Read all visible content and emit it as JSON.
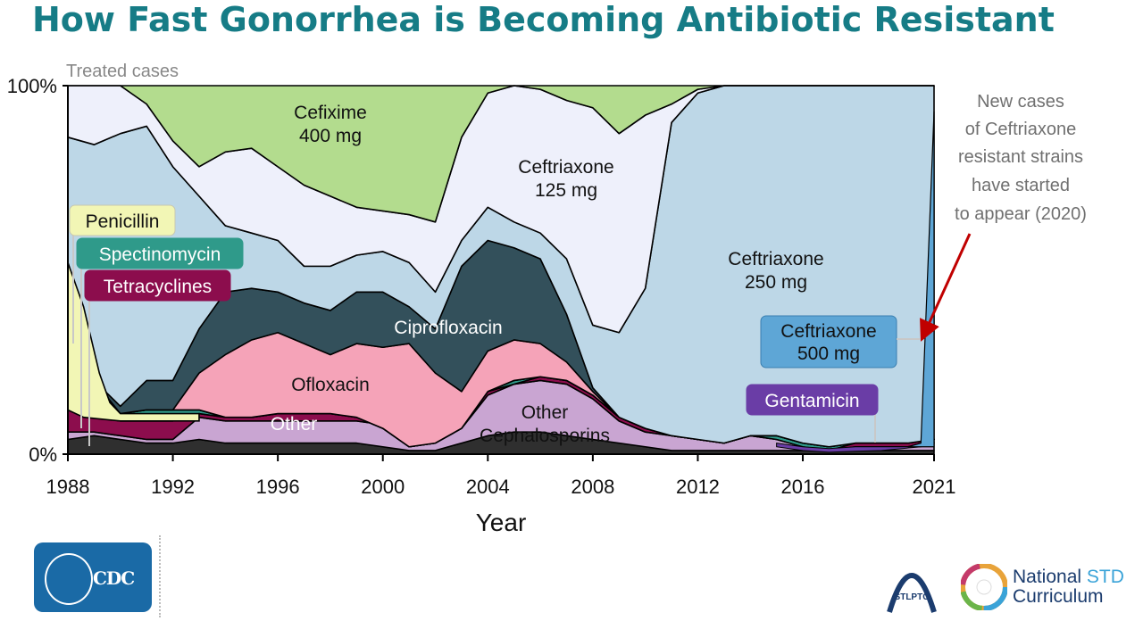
{
  "title": "How Fast Gonorrhea is Becoming Antibiotic Resistant",
  "chart_data": {
    "type": "area",
    "y_axis_title": "Treated cases",
    "y_ticks": [
      "100%",
      "0%"
    ],
    "x_ticks": [
      "1988",
      "1992",
      "1996",
      "2000",
      "2004",
      "2008",
      "2012",
      "2016",
      "2021"
    ],
    "xlabel": "Year",
    "ylim": [
      0,
      100
    ],
    "x": [
      1988,
      1989,
      1990,
      1991,
      1992,
      1993,
      1994,
      1995,
      1996,
      1997,
      1998,
      1999,
      2000,
      2001,
      2002,
      2003,
      2004,
      2005,
      2006,
      2007,
      2008,
      2009,
      2010,
      2011,
      2012,
      2013,
      2014,
      2015,
      2016,
      2017,
      2018,
      2019,
      2020,
      2021
    ],
    "boundaries_cumulative_percent": {
      "penicillin_tetracyclines_top": [
        4,
        5,
        4,
        3,
        3,
        4,
        3,
        3,
        3,
        3,
        3,
        3,
        2,
        1,
        1,
        3,
        5,
        6,
        6,
        5,
        4,
        3,
        2,
        1,
        1,
        1,
        1,
        1,
        1,
        1,
        1,
        1,
        1,
        1
      ],
      "tetracyclines_top": [
        6,
        6,
        5,
        4,
        4,
        10,
        9,
        9,
        9,
        9,
        9,
        9,
        8,
        2,
        3,
        7,
        16,
        19,
        20,
        19,
        15,
        9,
        6,
        5,
        4,
        3,
        5,
        4,
        2,
        1,
        2,
        2,
        2,
        3
      ],
      "spectinomycin_top": [
        12,
        10,
        9,
        9,
        9,
        11,
        10,
        10,
        11,
        11,
        11,
        10,
        7,
        2,
        3,
        7,
        17,
        19,
        21,
        20,
        16,
        10,
        7,
        5,
        4,
        3,
        5,
        4,
        2,
        1,
        3,
        3,
        3,
        4
      ],
      "penicillin_top": [
        52,
        20,
        11,
        12,
        12,
        12,
        10,
        10,
        11,
        11,
        11,
        10,
        7,
        2,
        3,
        7,
        17,
        20,
        21,
        20,
        16,
        10,
        7,
        5,
        4,
        3,
        5,
        5,
        3,
        2,
        3,
        3,
        3,
        4
      ],
      "other_top": [
        52,
        20,
        11,
        12,
        12,
        12,
        10,
        10,
        11,
        11,
        11,
        10,
        7,
        2,
        3,
        7,
        17,
        20,
        21,
        20,
        16,
        10,
        7,
        5,
        4,
        3,
        5,
        5,
        3,
        2,
        3,
        3,
        3,
        4
      ],
      "ofloxacin_top": [
        52,
        20,
        11,
        12,
        12,
        22,
        27,
        31,
        33,
        30,
        27,
        30,
        29,
        30,
        22,
        17,
        28,
        31,
        30,
        25,
        17,
        10,
        7,
        5,
        4,
        3,
        5,
        5,
        3,
        2,
        3,
        3,
        3,
        4
      ],
      "ciprofloxacin_top": [
        52,
        20,
        13,
        20,
        20,
        34,
        44,
        45,
        44,
        41,
        39,
        44,
        44,
        40,
        34,
        51,
        58,
        56,
        53,
        38,
        18,
        10,
        7,
        5,
        4,
        3,
        5,
        5,
        3,
        2,
        3,
        3,
        3,
        4
      ],
      "ceftriaxone250_top": [
        86,
        84,
        87,
        89,
        78,
        70,
        62,
        60,
        58,
        51,
        51,
        54,
        55,
        52,
        44,
        58,
        67,
        63,
        60,
        53,
        35,
        33,
        45,
        90,
        98,
        100,
        100,
        100,
        100,
        100,
        100,
        100,
        100,
        100
      ],
      "ceftriaxone125_top": [
        100,
        100,
        100,
        95,
        85,
        78,
        82,
        83,
        78,
        73,
        70,
        67,
        66,
        65,
        63,
        86,
        98,
        100,
        99,
        96,
        94,
        87,
        92,
        95,
        99,
        100,
        100,
        100,
        100,
        100,
        100,
        100,
        100,
        100
      ],
      "cefixime_top": [
        100,
        100,
        100,
        100,
        100,
        100,
        100,
        100,
        100,
        100,
        100,
        100,
        100,
        100,
        100,
        100,
        100,
        100,
        100,
        100,
        100,
        100,
        100,
        100,
        100,
        100,
        100,
        100,
        100,
        100,
        100,
        100,
        100,
        100
      ],
      "ceftriaxone500_bottom": [
        100,
        100,
        100,
        100,
        100,
        100,
        100,
        100,
        100,
        100,
        100,
        100,
        100,
        100,
        100,
        100,
        100,
        100,
        100,
        100,
        100,
        100,
        100,
        100,
        100,
        100,
        100,
        100,
        100,
        100,
        100,
        100,
        4,
        4
      ]
    },
    "series": [
      {
        "name": "Penicillin",
        "color": "#f2f6b5"
      },
      {
        "name": "Spectinomycin",
        "color": "#2f9a8a"
      },
      {
        "name": "Tetracyclines",
        "color": "#8c0d4d"
      },
      {
        "name": "Other",
        "color": "#2f2f2f"
      },
      {
        "name": "Ofloxacin",
        "color": "#f5a3b8"
      },
      {
        "name": "Ciprofloxacin",
        "color": "#33505b"
      },
      {
        "name": "Ceftriaxone 250 mg",
        "color": "#bdd7e7"
      },
      {
        "name": "Ceftriaxone 125 mg",
        "color": "#eef0fb"
      },
      {
        "name": "Cefixime 400 mg",
        "color": "#b3dc8e"
      },
      {
        "name": "Other Cephalosporins",
        "color": "#c9a5d2"
      },
      {
        "name": "Gentamicin",
        "color": "#6a3da6"
      },
      {
        "name": "Ceftriaxone 500 mg",
        "color": "#5ea6d6"
      }
    ],
    "labels": {
      "cefixime_1": "Cefixime",
      "cefixime_2": "400 mg",
      "ceftriaxone125_1": "Ceftriaxone",
      "ceftriaxone125_2": "125 mg",
      "ceftriaxone250_1": "Ceftriaxone",
      "ceftriaxone250_2": "250 mg",
      "penicillin": "Penicillin",
      "spectinomycin": "Spectinomycin",
      "tetracyclines": "Tetracyclines",
      "ciprofloxacin": "Ciprofloxacin",
      "ofloxacin": "Ofloxacin",
      "other": "Other",
      "other_cephalosporins_1": "Other",
      "other_cephalosporins_2": "Cephalosporins",
      "ceftriaxone500_1": "Ceftriaxone",
      "ceftriaxone500_2": "500 mg",
      "gentamicin": "Gentamicin"
    },
    "annotation": [
      "New cases",
      "of Ceftriaxone",
      "resistant strains",
      "have started",
      "to appear (2020)"
    ]
  },
  "logos": {
    "cdc": "CDC",
    "stlptc": "STLPTC",
    "nstd_line1_a": "National ",
    "nstd_line1_b": "STD",
    "nstd_line2": "Curriculum"
  },
  "colors": {
    "title": "#167c86",
    "annotation_arrow": "#c00000"
  }
}
